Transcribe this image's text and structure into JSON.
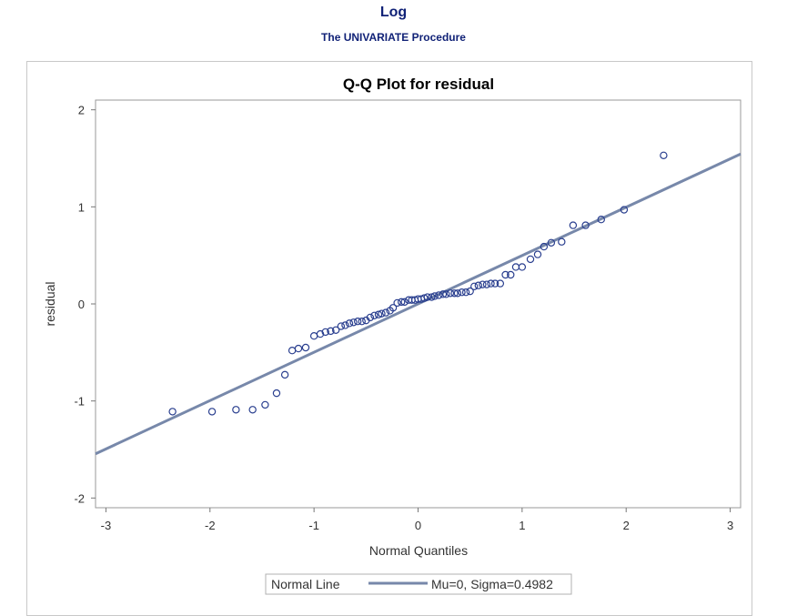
{
  "header": {
    "title": "Log",
    "procedure": "The UNIVARIATE Procedure"
  },
  "colors": {
    "header_text": "#112277",
    "ref_line": "#7788aa",
    "marker": "#2a3f8f",
    "frame": "#c8c8c8"
  },
  "chart_data": {
    "type": "scatter",
    "title": "Q-Q Plot for residual",
    "xlabel": "Normal Quantiles",
    "ylabel": "residual",
    "xlim": [
      -3.1,
      3.1
    ],
    "ylim": [
      -2.1,
      2.1
    ],
    "x_ticks": [
      -3,
      -2,
      -1,
      0,
      1,
      2,
      3
    ],
    "x_tick_labels": [
      "-3",
      "-2",
      "-1",
      "0",
      "1",
      "2",
      "3"
    ],
    "y_ticks": [
      -2,
      -1,
      0,
      1,
      2
    ],
    "y_tick_labels": [
      "-2",
      "-1",
      "0",
      "1",
      "2"
    ],
    "grid": false,
    "series": [
      {
        "x": [
          -2.36,
          -1.98,
          -1.75,
          -1.59,
          -1.47,
          -1.36,
          -1.28,
          -1.21,
          -1.15,
          -1.08,
          -1.0,
          -0.94,
          -0.89,
          -0.84,
          -0.79,
          -0.74,
          -0.7,
          -0.66,
          -0.62,
          -0.58,
          -0.54,
          -0.5,
          -0.46,
          -0.42,
          -0.38,
          -0.35,
          -0.31,
          -0.27,
          -0.24,
          -0.2,
          -0.16,
          -0.13,
          -0.09,
          -0.06,
          -0.03,
          0.0,
          0.03,
          0.06,
          0.09,
          0.13,
          0.16,
          0.2,
          0.24,
          0.27,
          0.31,
          0.35,
          0.38,
          0.42,
          0.46,
          0.5,
          0.54,
          0.58,
          0.62,
          0.66,
          0.7,
          0.74,
          0.79,
          0.84,
          0.89,
          0.94,
          1.0,
          1.08,
          1.15,
          1.21,
          1.28,
          1.38,
          1.49,
          1.61,
          1.76,
          1.98,
          2.36
        ],
        "y": [
          -1.11,
          -1.11,
          -1.09,
          -1.09,
          -1.04,
          -0.92,
          -0.73,
          -0.48,
          -0.46,
          -0.45,
          -0.33,
          -0.31,
          -0.29,
          -0.28,
          -0.27,
          -0.23,
          -0.22,
          -0.2,
          -0.19,
          -0.18,
          -0.18,
          -0.17,
          -0.14,
          -0.12,
          -0.11,
          -0.1,
          -0.09,
          -0.07,
          -0.04,
          0.01,
          0.02,
          0.02,
          0.04,
          0.04,
          0.04,
          0.05,
          0.05,
          0.06,
          0.07,
          0.07,
          0.08,
          0.09,
          0.1,
          0.1,
          0.11,
          0.11,
          0.11,
          0.12,
          0.12,
          0.13,
          0.18,
          0.19,
          0.2,
          0.2,
          0.21,
          0.21,
          0.21,
          0.3,
          0.3,
          0.38,
          0.38,
          0.46,
          0.51,
          0.59,
          0.63,
          0.64,
          0.81,
          0.81,
          0.87,
          0.97,
          1.53
        ]
      }
    ],
    "ref_line": {
      "mu": 0,
      "sigma": 0.4982
    },
    "legend": {
      "title": "Normal Line",
      "entry": "Mu=0, Sigma=0.4982",
      "placement": "bottom-center"
    }
  }
}
